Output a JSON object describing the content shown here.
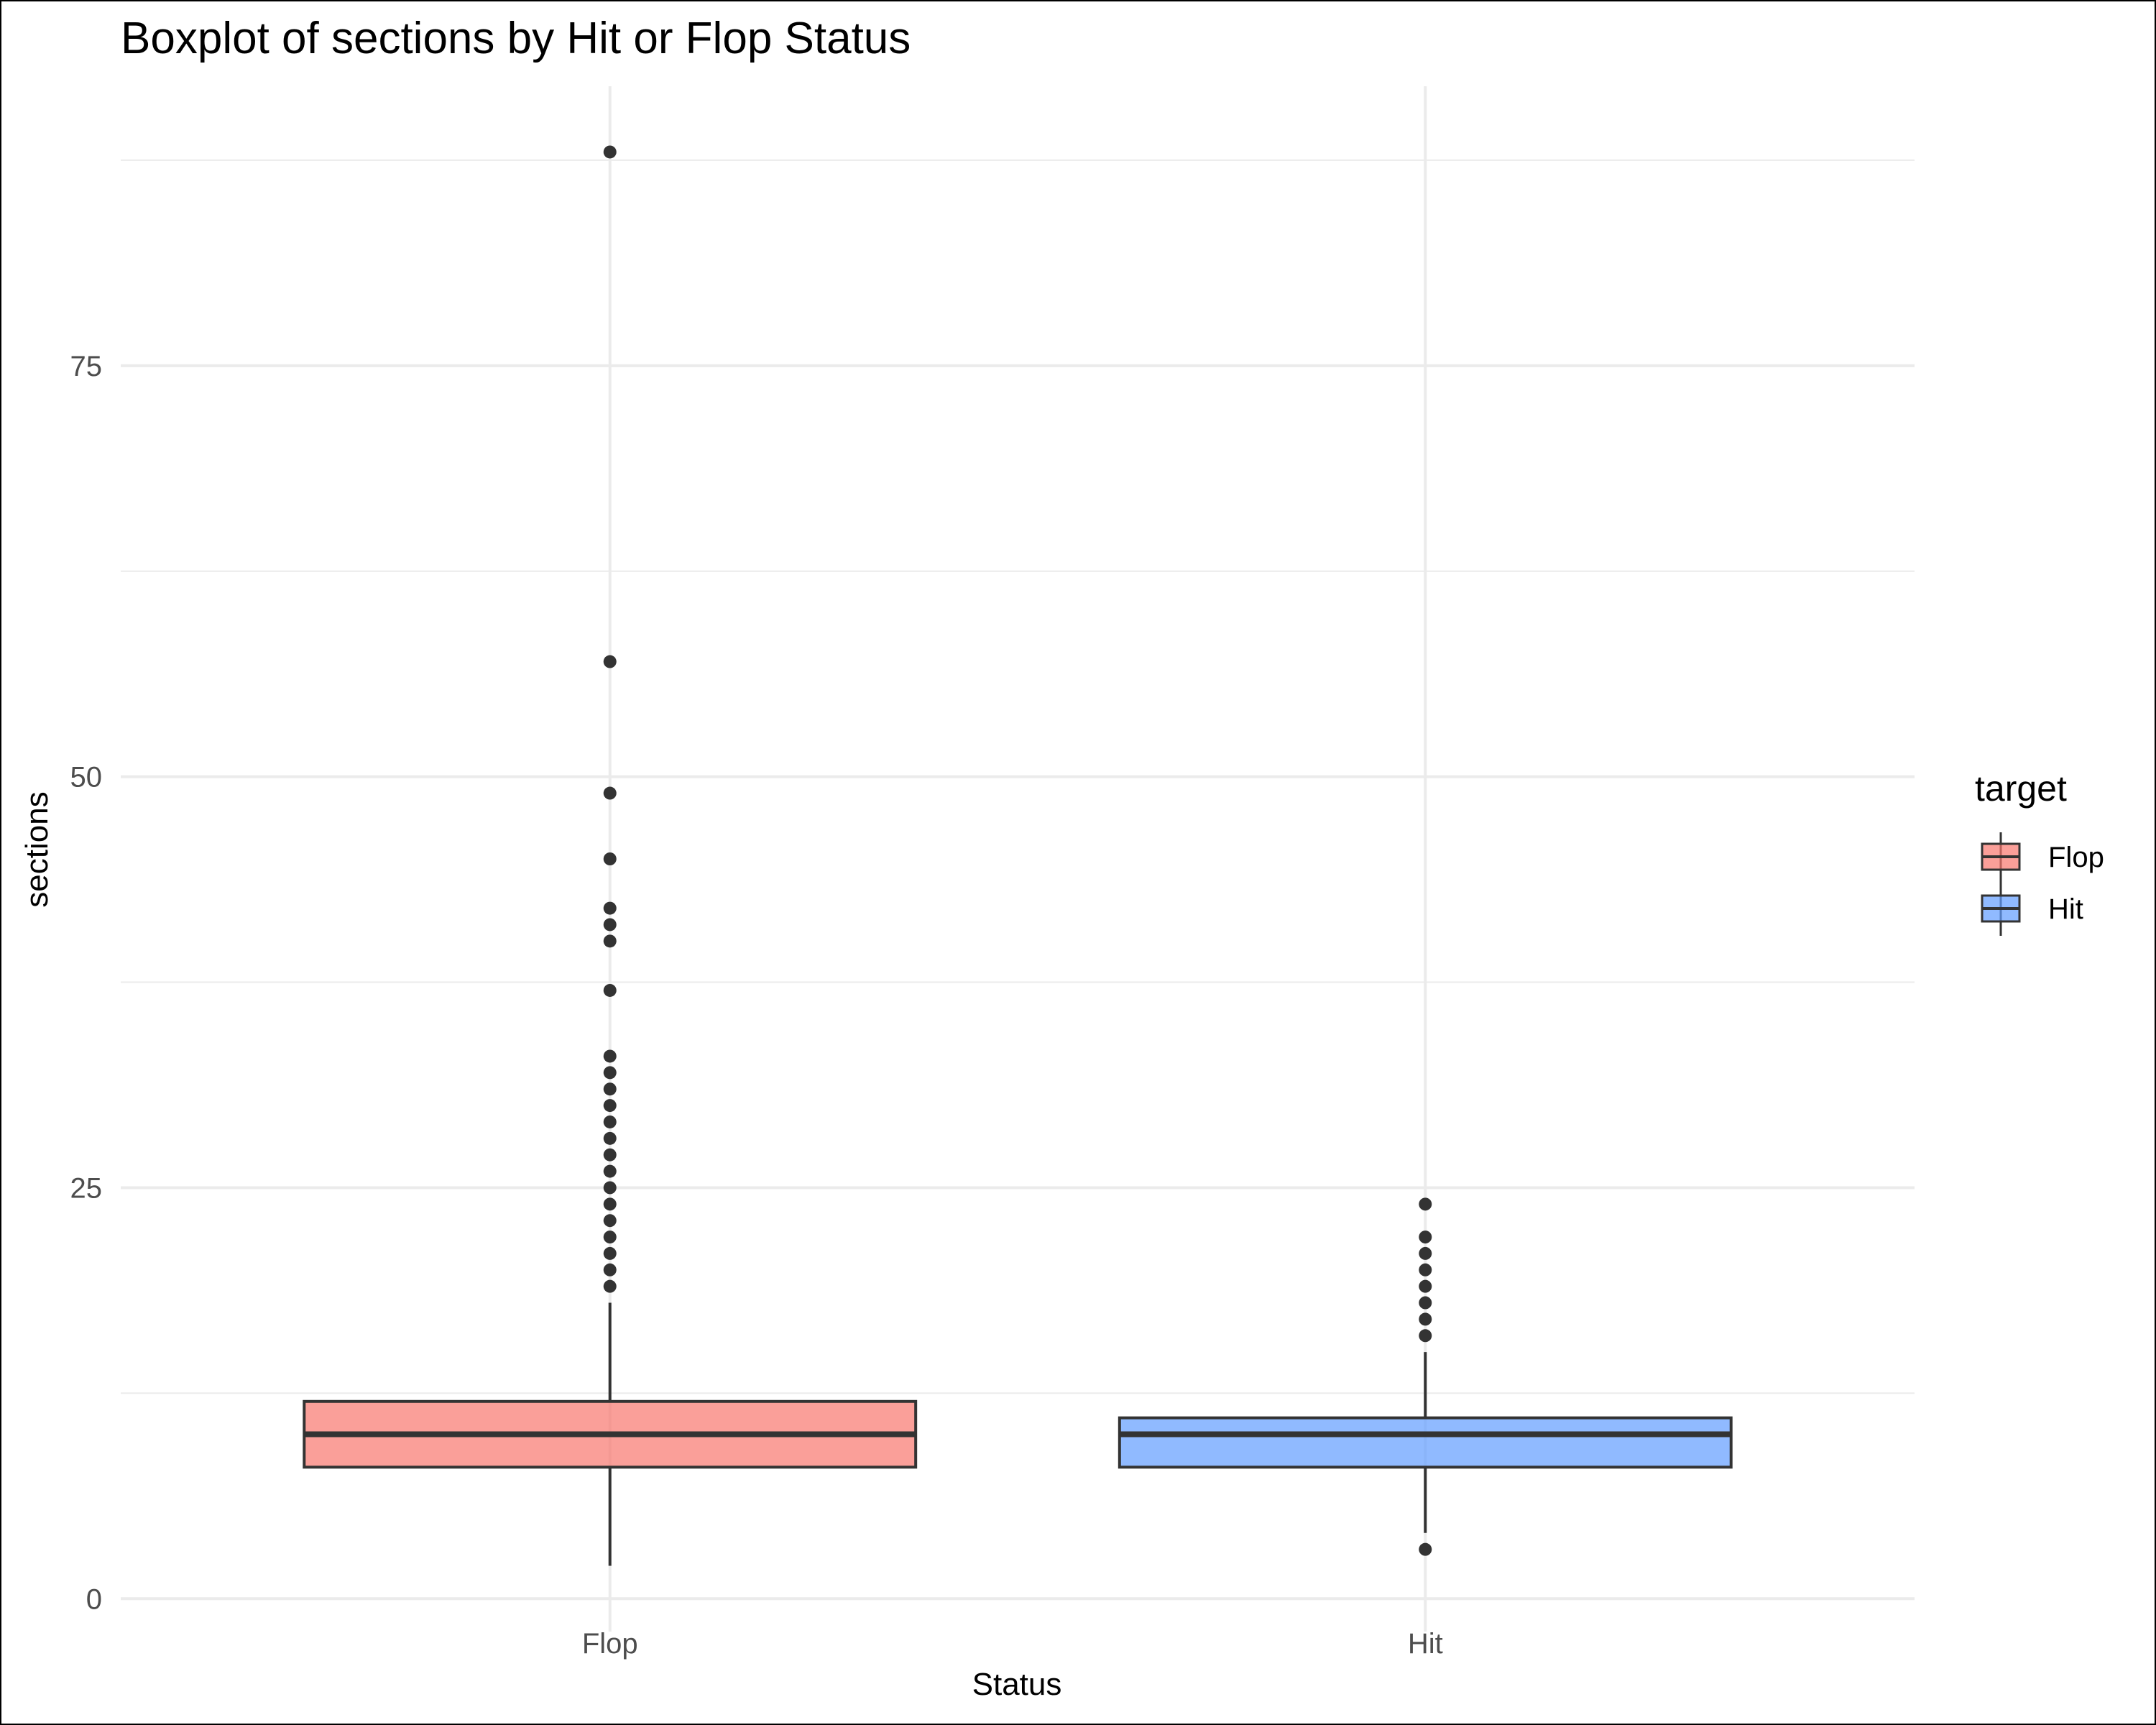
{
  "chart_data": {
    "type": "boxplot",
    "title": "Boxplot of sections by Hit or Flop Status",
    "xlabel": "Status",
    "ylabel": "sections",
    "categories": [
      "Flop",
      "Hit"
    ],
    "ylim": [
      -2,
      92
    ],
    "yticks": [
      0,
      25,
      50,
      75
    ],
    "grid": true,
    "legend": {
      "title": "target",
      "position": "right",
      "entries": [
        "Flop",
        "Hit"
      ]
    },
    "series": [
      {
        "name": "Flop",
        "color": "#f8766d",
        "whisker_low": 2,
        "q1": 8,
        "median": 10,
        "q3": 12,
        "whisker_high": 18,
        "outliers": [
          19,
          20,
          21,
          22,
          23,
          24,
          25,
          26,
          27,
          28,
          29,
          30,
          31,
          32,
          33,
          37,
          40,
          41,
          42,
          45,
          49,
          57,
          88
        ]
      },
      {
        "name": "Hit",
        "color": "#619cff",
        "whisker_low": 4,
        "q1": 8,
        "median": 10,
        "q3": 11,
        "whisker_high": 15,
        "outliers": [
          3,
          16,
          17,
          18,
          19,
          20,
          21,
          22,
          24
        ]
      }
    ]
  }
}
